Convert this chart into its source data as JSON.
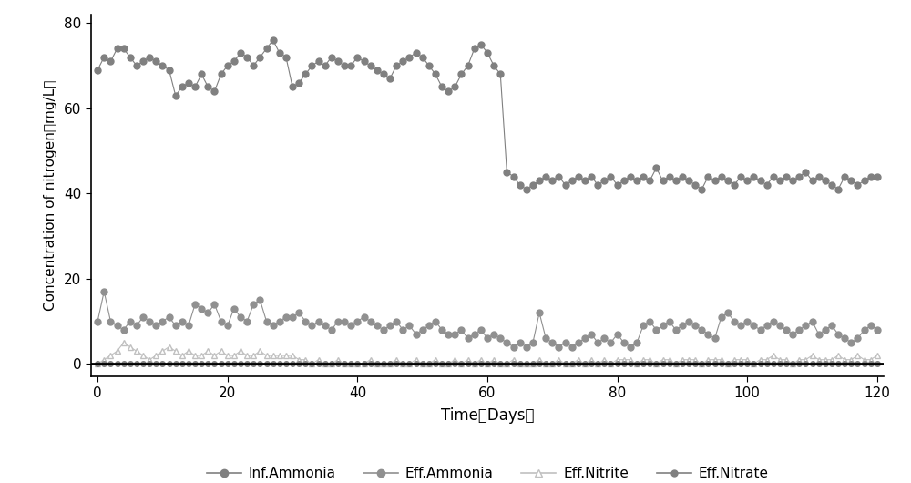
{
  "inf_ammonia_x": [
    0,
    1,
    2,
    3,
    4,
    5,
    6,
    7,
    8,
    9,
    10,
    11,
    12,
    13,
    14,
    15,
    16,
    17,
    18,
    19,
    20,
    21,
    22,
    23,
    24,
    25,
    26,
    27,
    28,
    29,
    30,
    31,
    32,
    33,
    34,
    35,
    36,
    37,
    38,
    39,
    40,
    41,
    42,
    43,
    44,
    45,
    46,
    47,
    48,
    49,
    50,
    51,
    52,
    53,
    54,
    55,
    56,
    57,
    58,
    59,
    60,
    61,
    62,
    63,
    64,
    65,
    66,
    67,
    68,
    69,
    70,
    71,
    72,
    73,
    74,
    75,
    76,
    77,
    78,
    79,
    80,
    81,
    82,
    83,
    84,
    85,
    86,
    87,
    88,
    89,
    90,
    91,
    92,
    93,
    94,
    95,
    96,
    97,
    98,
    99,
    100,
    101,
    102,
    103,
    104,
    105,
    106,
    107,
    108,
    109,
    110,
    111,
    112,
    113,
    114,
    115,
    116,
    117,
    118,
    119,
    120
  ],
  "inf_ammonia_y": [
    69,
    72,
    71,
    74,
    74,
    72,
    70,
    71,
    72,
    71,
    70,
    69,
    63,
    65,
    66,
    65,
    68,
    65,
    64,
    68,
    70,
    71,
    73,
    72,
    70,
    72,
    74,
    76,
    73,
    72,
    65,
    66,
    68,
    70,
    71,
    70,
    72,
    71,
    70,
    70,
    72,
    71,
    70,
    69,
    68,
    67,
    70,
    71,
    72,
    73,
    72,
    70,
    68,
    65,
    64,
    65,
    68,
    70,
    74,
    75,
    73,
    70,
    68,
    45,
    44,
    42,
    41,
    42,
    43,
    44,
    43,
    44,
    42,
    43,
    44,
    43,
    44,
    42,
    43,
    44,
    42,
    43,
    44,
    43,
    44,
    43,
    46,
    43,
    44,
    43,
    44,
    43,
    42,
    41,
    44,
    43,
    44,
    43,
    42,
    44,
    43,
    44,
    43,
    42,
    44,
    43,
    44,
    43,
    44,
    45,
    43,
    44,
    43,
    42,
    41,
    44,
    43,
    42,
    43,
    44,
    44
  ],
  "eff_ammonia_x": [
    0,
    1,
    2,
    3,
    4,
    5,
    6,
    7,
    8,
    9,
    10,
    11,
    12,
    13,
    14,
    15,
    16,
    17,
    18,
    19,
    20,
    21,
    22,
    23,
    24,
    25,
    26,
    27,
    28,
    29,
    30,
    31,
    32,
    33,
    34,
    35,
    36,
    37,
    38,
    39,
    40,
    41,
    42,
    43,
    44,
    45,
    46,
    47,
    48,
    49,
    50,
    51,
    52,
    53,
    54,
    55,
    56,
    57,
    58,
    59,
    60,
    61,
    62,
    63,
    64,
    65,
    66,
    67,
    68,
    69,
    70,
    71,
    72,
    73,
    74,
    75,
    76,
    77,
    78,
    79,
    80,
    81,
    82,
    83,
    84,
    85,
    86,
    87,
    88,
    89,
    90,
    91,
    92,
    93,
    94,
    95,
    96,
    97,
    98,
    99,
    100,
    101,
    102,
    103,
    104,
    105,
    106,
    107,
    108,
    109,
    110,
    111,
    112,
    113,
    114,
    115,
    116,
    117,
    118,
    119,
    120
  ],
  "eff_ammonia_y": [
    10,
    17,
    10,
    9,
    8,
    10,
    9,
    11,
    10,
    9,
    10,
    11,
    9,
    10,
    9,
    14,
    13,
    12,
    14,
    10,
    9,
    13,
    11,
    10,
    14,
    15,
    10,
    9,
    10,
    11,
    11,
    12,
    10,
    9,
    10,
    9,
    8,
    10,
    10,
    9,
    10,
    11,
    10,
    9,
    8,
    9,
    10,
    8,
    9,
    7,
    8,
    9,
    10,
    8,
    7,
    7,
    8,
    6,
    7,
    8,
    6,
    7,
    6,
    5,
    4,
    5,
    4,
    5,
    12,
    6,
    5,
    4,
    5,
    4,
    5,
    6,
    7,
    5,
    6,
    5,
    7,
    5,
    4,
    5,
    9,
    10,
    8,
    9,
    10,
    8,
    9,
    10,
    9,
    8,
    7,
    6,
    11,
    12,
    10,
    9,
    10,
    9,
    8,
    9,
    10,
    9,
    8,
    7,
    8,
    9,
    10,
    7,
    8,
    9,
    7,
    6,
    5,
    6,
    8,
    9,
    8
  ],
  "eff_nitrite_x": [
    0,
    1,
    2,
    3,
    4,
    5,
    6,
    7,
    8,
    9,
    10,
    11,
    12,
    13,
    14,
    15,
    16,
    17,
    18,
    19,
    20,
    21,
    22,
    23,
    24,
    25,
    26,
    27,
    28,
    29,
    30,
    31,
    32,
    33,
    34,
    35,
    36,
    37,
    38,
    39,
    40,
    41,
    42,
    43,
    44,
    45,
    46,
    47,
    48,
    49,
    50,
    51,
    52,
    53,
    54,
    55,
    56,
    57,
    58,
    59,
    60,
    61,
    62,
    63,
    64,
    65,
    66,
    67,
    68,
    69,
    70,
    71,
    72,
    73,
    74,
    75,
    76,
    77,
    78,
    79,
    80,
    81,
    82,
    83,
    84,
    85,
    86,
    87,
    88,
    89,
    90,
    91,
    92,
    93,
    94,
    95,
    96,
    97,
    98,
    99,
    100,
    101,
    102,
    103,
    104,
    105,
    106,
    107,
    108,
    109,
    110,
    111,
    112,
    113,
    114,
    115,
    116,
    117,
    118,
    119,
    120
  ],
  "eff_nitrite_y": [
    0,
    1,
    2,
    3,
    5,
    4,
    3,
    2,
    1,
    2,
    3,
    4,
    3,
    2,
    3,
    2,
    2,
    3,
    2,
    3,
    2,
    2,
    3,
    2,
    2,
    3,
    2,
    2,
    2,
    2,
    2,
    1,
    1,
    0,
    1,
    0,
    0,
    1,
    0,
    0,
    0,
    0,
    1,
    0,
    0,
    0,
    1,
    0,
    0,
    1,
    0,
    0,
    1,
    0,
    0,
    1,
    0,
    1,
    0,
    1,
    0,
    1,
    0,
    0,
    1,
    0,
    0,
    0,
    1,
    0,
    0,
    1,
    0,
    0,
    1,
    0,
    1,
    0,
    1,
    0,
    1,
    1,
    1,
    0,
    1,
    1,
    0,
    1,
    1,
    0,
    1,
    1,
    1,
    0,
    1,
    1,
    1,
    0,
    1,
    1,
    1,
    0,
    1,
    1,
    2,
    1,
    1,
    0,
    1,
    1,
    2,
    1,
    1,
    1,
    2,
    1,
    1,
    2,
    1,
    1,
    2
  ],
  "eff_nitrate_x": [
    0,
    1,
    2,
    3,
    4,
    5,
    6,
    7,
    8,
    9,
    10,
    11,
    12,
    13,
    14,
    15,
    16,
    17,
    18,
    19,
    20,
    21,
    22,
    23,
    24,
    25,
    26,
    27,
    28,
    29,
    30,
    31,
    32,
    33,
    34,
    35,
    36,
    37,
    38,
    39,
    40,
    41,
    42,
    43,
    44,
    45,
    46,
    47,
    48,
    49,
    50,
    51,
    52,
    53,
    54,
    55,
    56,
    57,
    58,
    59,
    60,
    61,
    62,
    63,
    64,
    65,
    66,
    67,
    68,
    69,
    70,
    71,
    72,
    73,
    74,
    75,
    76,
    77,
    78,
    79,
    80,
    81,
    82,
    83,
    84,
    85,
    86,
    87,
    88,
    89,
    90,
    91,
    92,
    93,
    94,
    95,
    96,
    97,
    98,
    99,
    100,
    101,
    102,
    103,
    104,
    105,
    106,
    107,
    108,
    109,
    110,
    111,
    112,
    113,
    114,
    115,
    116,
    117,
    118,
    119,
    120
  ],
  "eff_nitrate_y": [
    0,
    0,
    0,
    0,
    0,
    0,
    0,
    0,
    0,
    0,
    0,
    0,
    0,
    0,
    0,
    0,
    0,
    0,
    0,
    0,
    0,
    0,
    0,
    0,
    0,
    0,
    0,
    0,
    0,
    0,
    0,
    0,
    0,
    0,
    0,
    0,
    0,
    0,
    0,
    0,
    0,
    0,
    0,
    0,
    0,
    0,
    0,
    0,
    0,
    0,
    0,
    0,
    0,
    0,
    0,
    0,
    0,
    0,
    0,
    0,
    0,
    0,
    0,
    0,
    0,
    0,
    0,
    0,
    0,
    0,
    0,
    0,
    0,
    0,
    0,
    0,
    0,
    0,
    0,
    0,
    0,
    0,
    0,
    0,
    0,
    0,
    0,
    0,
    0,
    0,
    0,
    0,
    0,
    0,
    0,
    0,
    0,
    0,
    0,
    0,
    0,
    0,
    0,
    0,
    0,
    0,
    0,
    0,
    0,
    0,
    0,
    0,
    0,
    0,
    0,
    0,
    0,
    0,
    0,
    0,
    0
  ],
  "inf_color": "#808080",
  "eff_ammonia_color": "#909090",
  "eff_nitrite_color": "#c0c0c0",
  "eff_nitrate_color": "#808080",
  "marker_size": 5,
  "xlabel": "Time（Days）",
  "ylabel": "Concentration of nitrogen（mg/L）",
  "ylim": [
    -3,
    82
  ],
  "xlim": [
    -1,
    121
  ],
  "yticks": [
    0,
    20,
    40,
    60,
    80
  ],
  "xticks": [
    0,
    20,
    40,
    60,
    80,
    100,
    120
  ],
  "legend_labels": [
    "Inf.Ammonia",
    "Eff.Ammonia",
    "Eff.Nitrite",
    "Eff.Nitrate"
  ],
  "background_color": "#ffffff"
}
